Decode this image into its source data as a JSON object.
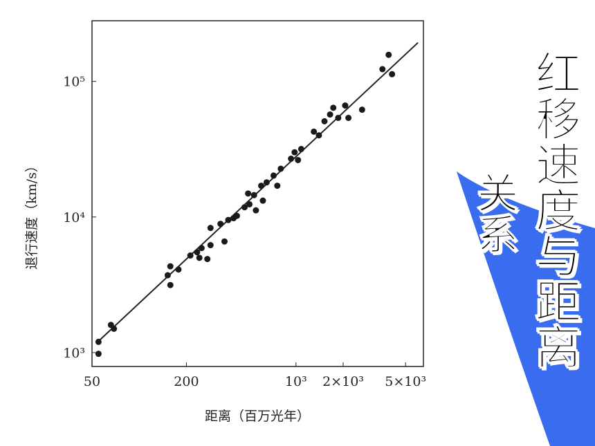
{
  "slide": {
    "title_main": "红移速度与距离",
    "title_sub": "关系"
  },
  "chart_data": {
    "type": "scatter",
    "x_label": "距离（百万光年）",
    "y_label": "退行速度（km/s）",
    "x_scale": "log",
    "y_scale": "log",
    "color": "#1a1a1a",
    "xlim": [
      50,
      6500
    ],
    "ylim": [
      790,
      280000
    ],
    "xticks": [
      50,
      200,
      {
        "value": 1000,
        "label": "10³"
      },
      {
        "value": 2000,
        "label": "2×10³"
      },
      {
        "value": 5000,
        "label": "5×10³"
      }
    ],
    "yticks": [
      {
        "value": 1000,
        "label": "10³"
      },
      {
        "value": 10000,
        "label": "10⁴"
      },
      {
        "value": 100000,
        "label": "10⁵"
      }
    ],
    "x": [
      55,
      55,
      66,
      69,
      152,
      158,
      158,
      178,
      212,
      234,
      250,
      242,
      272,
      285,
      285,
      330,
      350,
      370,
      400,
      420,
      470,
      495,
      505,
      540,
      555,
      600,
      615,
      650,
      720,
      760,
      800,
      930,
      980,
      1030,
      1080,
      1300,
      1400,
      1520,
      1650,
      1730,
      1860,
      2060,
      2160,
      2640,
      3560,
      3900,
      4100
    ],
    "values": [
      1200,
      980,
      1600,
      1500,
      3720,
      4330,
      3150,
      4100,
      5200,
      5500,
      5900,
      5000,
      4900,
      6200,
      8300,
      8900,
      6600,
      9500,
      9800,
      10200,
      11800,
      14900,
      12400,
      14500,
      11200,
      17000,
      13200,
      18000,
      20200,
      17000,
      22700,
      26900,
      30000,
      26300,
      31700,
      42600,
      40000,
      50800,
      57000,
      63900,
      53800,
      66400,
      53800,
      61800,
      123000,
      157000,
      113000
    ],
    "fit_line": {
      "x": [
        54,
        6000
      ],
      "values": [
        1190,
        193000
      ]
    }
  }
}
